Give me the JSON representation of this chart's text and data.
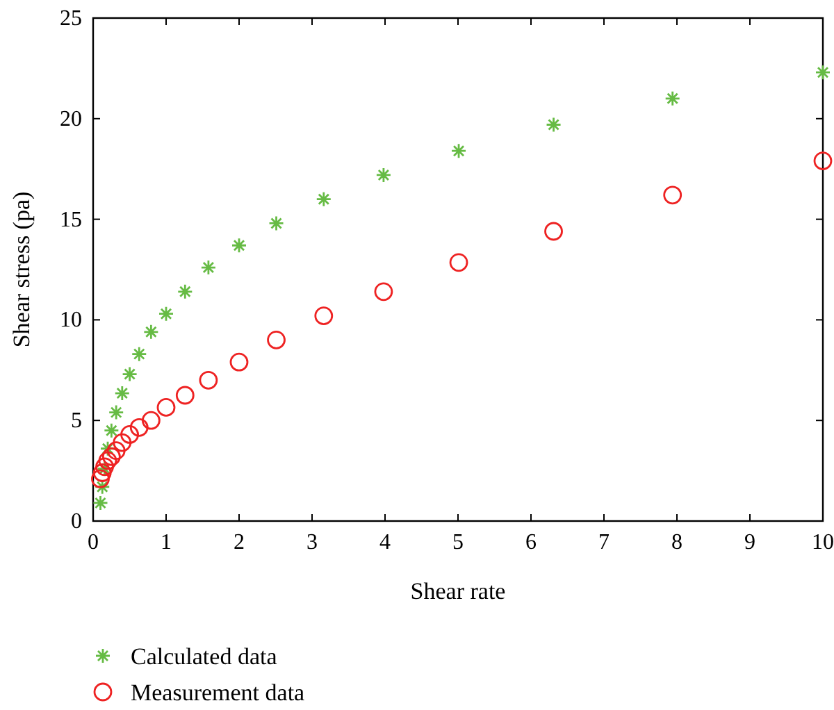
{
  "chart_data": {
    "type": "scatter",
    "xlabel": "Shear rate",
    "ylabel": "Shear stress (pa)",
    "x": [
      0.1,
      0.126,
      0.158,
      0.2,
      0.251,
      0.316,
      0.398,
      0.501,
      0.631,
      0.794,
      1,
      1.26,
      1.58,
      2,
      2.51,
      3.16,
      3.98,
      5.01,
      6.31,
      7.94,
      10
    ],
    "series": [
      {
        "name": "Calculated data",
        "color": "#66bb44",
        "marker": "cross",
        "values": [
          0.9,
          1.7,
          2.6,
          3.6,
          4.5,
          5.4,
          6.35,
          7.3,
          8.3,
          9.4,
          10.3,
          11.4,
          12.6,
          13.7,
          14.8,
          16.0,
          17.2,
          18.4,
          19.7,
          21.0,
          22.3
        ]
      },
      {
        "name": "Measurement data",
        "color": "#ee2222",
        "marker": "circle",
        "values": [
          2.1,
          2.4,
          2.7,
          3.0,
          3.2,
          3.5,
          3.9,
          4.3,
          4.65,
          5.0,
          5.65,
          6.25,
          7.0,
          7.9,
          9.0,
          10.2,
          11.4,
          12.85,
          14.4,
          16.2,
          17.9
        ]
      }
    ],
    "xlim": [
      0,
      10
    ],
    "xticks": [
      0,
      1,
      2,
      3,
      4,
      5,
      6,
      7,
      8,
      9,
      10
    ],
    "ylim": [
      0,
      25
    ],
    "yticks": [
      0,
      5,
      10,
      15,
      20,
      25
    ],
    "grid": false,
    "legend": "bottom left"
  }
}
